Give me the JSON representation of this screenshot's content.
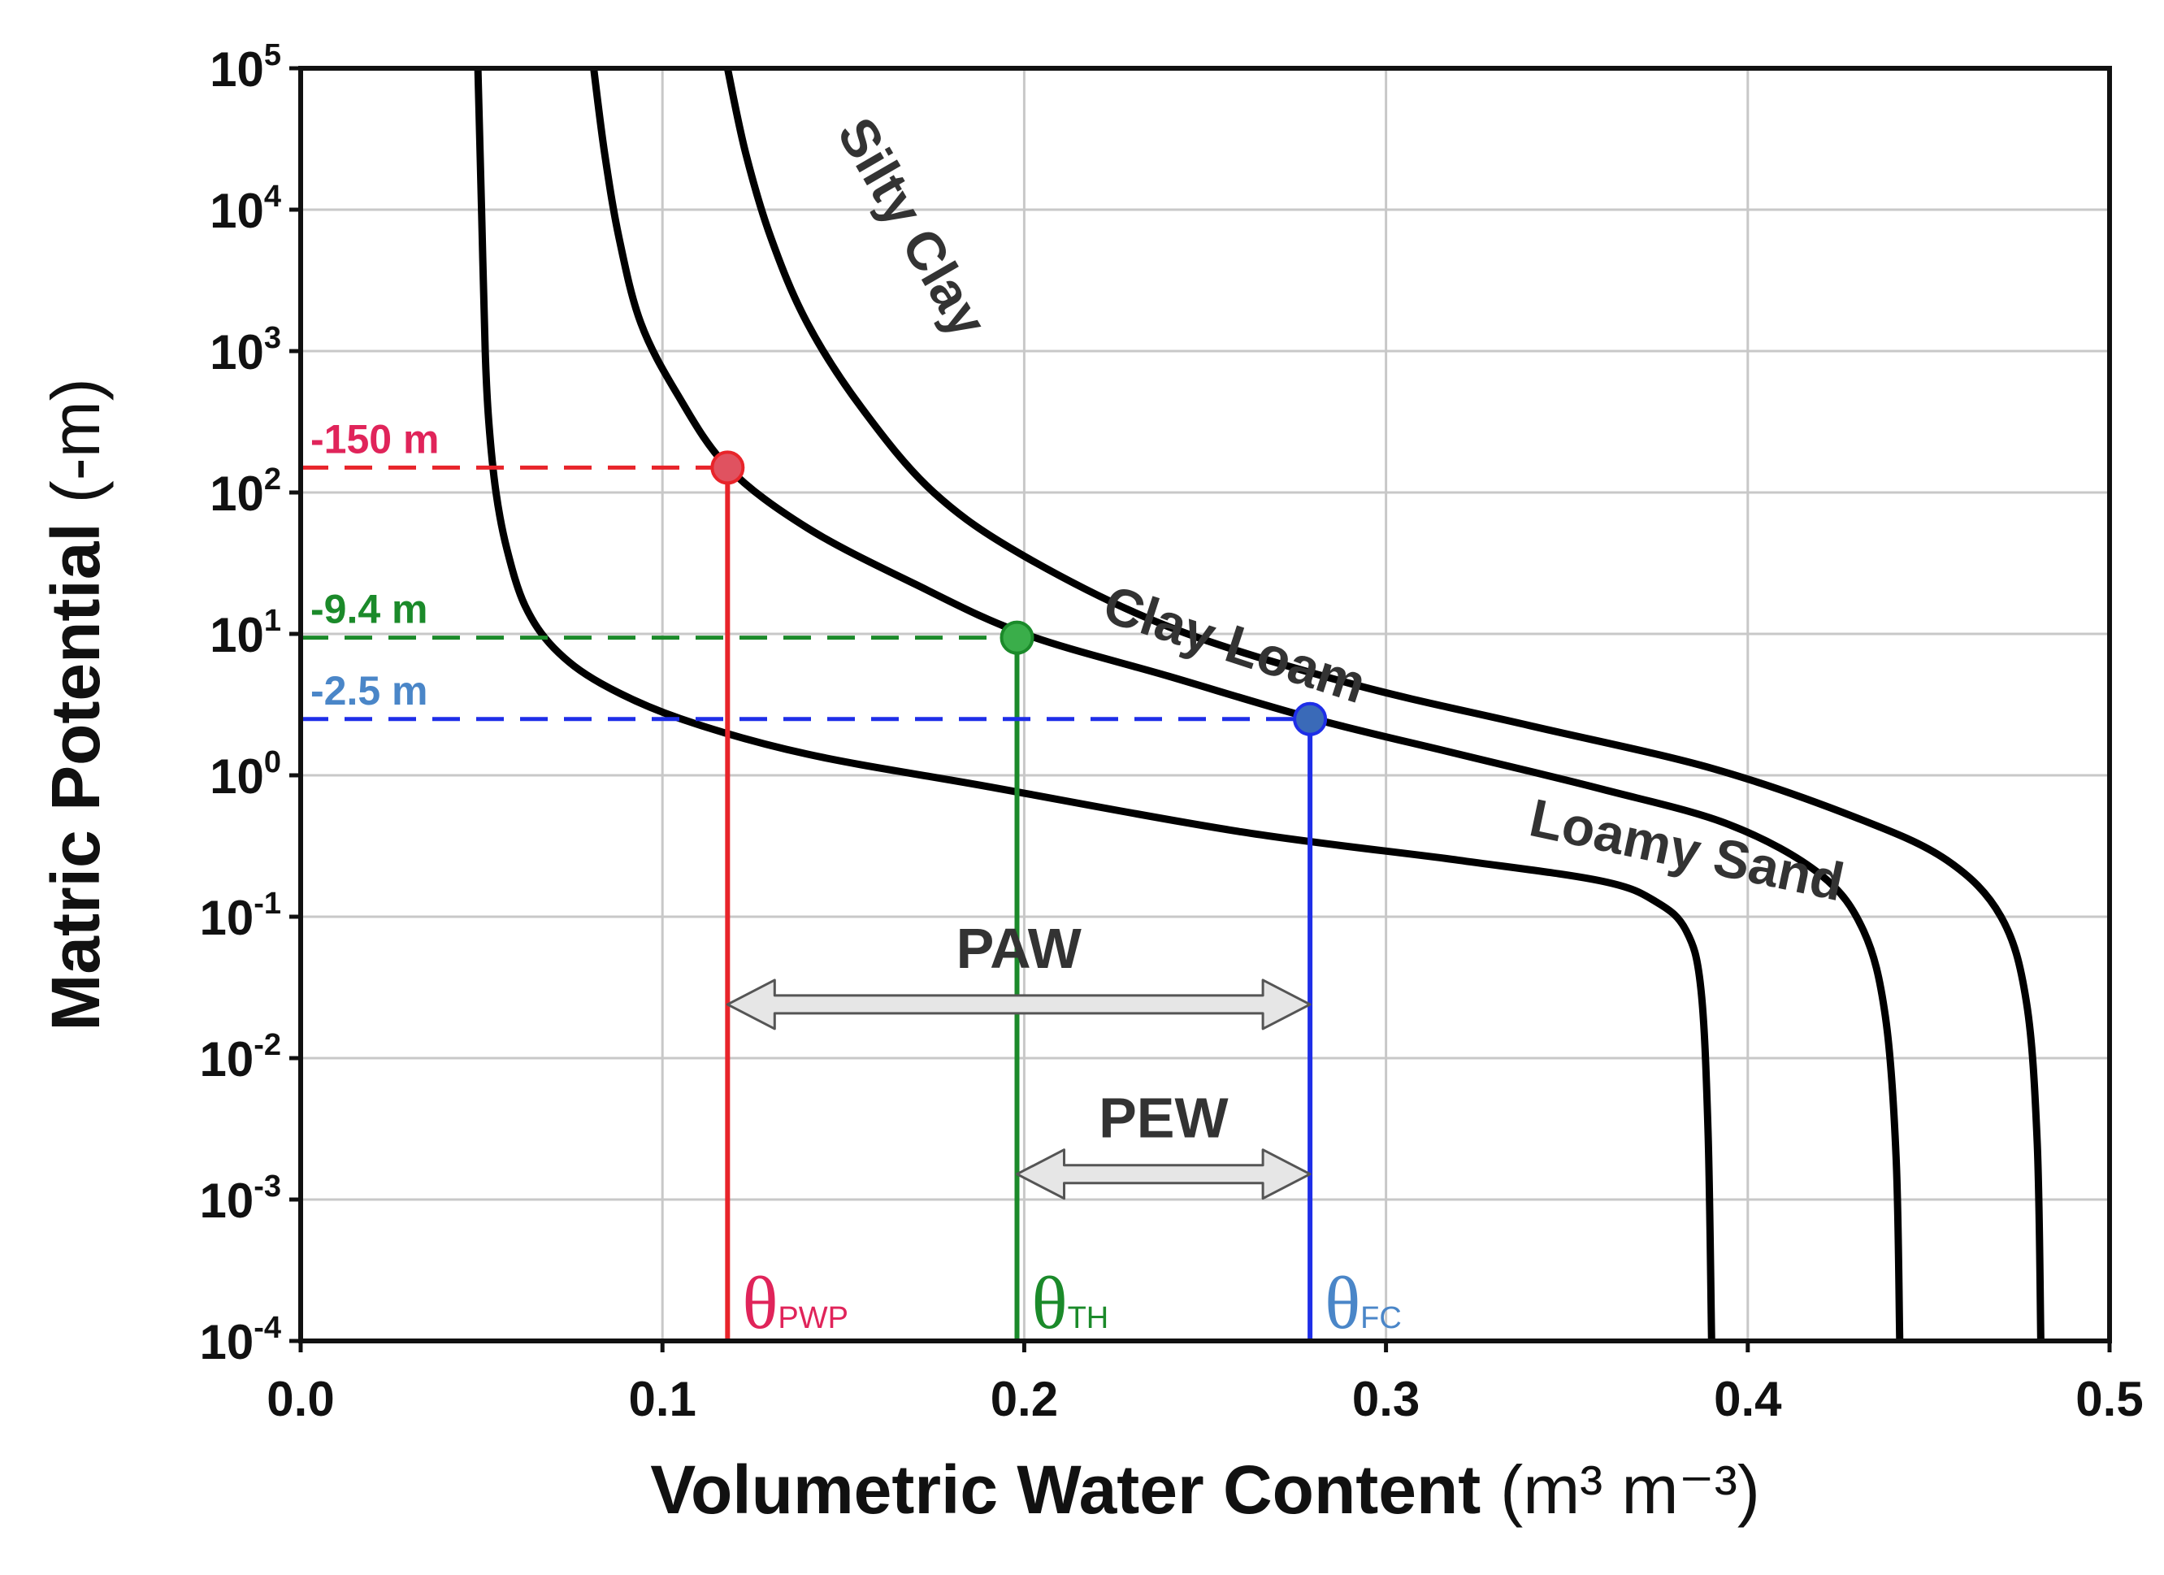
{
  "chart_data": {
    "type": "line",
    "xlabel": "Volumetric Water Content",
    "xlabel_unit": "(m³ m⁻³)",
    "ylabel": "Matric Potential",
    "ylabel_unit": "(-m)",
    "xlim": [
      0.0,
      0.5
    ],
    "ylim_log10": [
      -4,
      5
    ],
    "grid": true,
    "x_ticks": [
      "0.0",
      "0.1",
      "0.2",
      "0.3",
      "0.4",
      "0.5"
    ],
    "y_ticks": [
      {
        "base": "10",
        "exp": "5"
      },
      {
        "base": "10",
        "exp": "4"
      },
      {
        "base": "10",
        "exp": "3"
      },
      {
        "base": "10",
        "exp": "2"
      },
      {
        "base": "10",
        "exp": "1"
      },
      {
        "base": "10",
        "exp": "0"
      },
      {
        "base": "10",
        "exp": "-1"
      },
      {
        "base": "10",
        "exp": "-2"
      },
      {
        "base": "10",
        "exp": "-3"
      },
      {
        "base": "10",
        "exp": "-4"
      }
    ],
    "series": [
      {
        "name": "Loamy Sand",
        "x": [
          0.049,
          0.05,
          0.051,
          0.052,
          0.054,
          0.057,
          0.062,
          0.07,
          0.083,
          0.105,
          0.14,
          0.19,
          0.26,
          0.32,
          0.36,
          0.375,
          0.383,
          0.387,
          0.389,
          0.39
        ],
        "log10_y": [
          5,
          4,
          3,
          2.5,
          2,
          1.6,
          1.2,
          0.9,
          0.65,
          0.4,
          0.15,
          -0.08,
          -0.4,
          -0.6,
          -0.75,
          -0.9,
          -1.1,
          -1.5,
          -2.5,
          -4
        ]
      },
      {
        "name": "Clay Loam",
        "x": [
          0.081,
          0.084,
          0.088,
          0.094,
          0.104,
          0.118,
          0.14,
          0.17,
          0.2,
          0.24,
          0.28,
          0.32,
          0.36,
          0.395,
          0.42,
          0.432,
          0.438,
          0.441,
          0.442
        ],
        "log10_y": [
          5,
          4.4,
          3.8,
          3.2,
          2.7,
          2.18,
          1.75,
          1.35,
          1.0,
          0.7,
          0.4,
          0.15,
          -0.1,
          -0.35,
          -0.7,
          -1.1,
          -1.7,
          -2.7,
          -4
        ]
      },
      {
        "name": "Silty Clay",
        "x": [
          0.118,
          0.123,
          0.13,
          0.14,
          0.155,
          0.175,
          0.2,
          0.24,
          0.29,
          0.34,
          0.39,
          0.43,
          0.455,
          0.47,
          0.477,
          0.48,
          0.481
        ],
        "log10_y": [
          5,
          4.4,
          3.8,
          3.2,
          2.6,
          2.0,
          1.55,
          1.05,
          0.65,
          0.35,
          0.05,
          -0.3,
          -0.6,
          -1.0,
          -1.6,
          -2.6,
          -4
        ]
      }
    ],
    "markers": [
      {
        "name": "PWP",
        "label": "-150 m",
        "theta": 0.118,
        "psi": 150,
        "color": "#e8242a",
        "label_color": "#e0245a",
        "point_fill": "#e05260",
        "theta_text": "θ",
        "theta_sub": "PWP"
      },
      {
        "name": "TH",
        "label": "-9.4 m",
        "theta": 0.198,
        "psi": 9.4,
        "color": "#1b8a2a",
        "label_color": "#1b8a2a",
        "point_fill": "#3aae4a",
        "theta_text": "θ",
        "theta_sub": "TH"
      },
      {
        "name": "FC",
        "label": "-2.5 m",
        "theta": 0.279,
        "psi": 2.5,
        "color": "#1e2ee8",
        "label_color": "#4a86c8",
        "point_fill": "#3a6ab8",
        "theta_text": "θ",
        "theta_sub": "FC"
      }
    ],
    "ranges": [
      {
        "label": "PAW",
        "from": 0.118,
        "to": 0.279,
        "at_log10_y": -1.62
      },
      {
        "label": "PEW",
        "from": 0.198,
        "to": 0.279,
        "at_log10_y": -2.82
      }
    ],
    "curve_labels": [
      {
        "text": "Silty Clay",
        "x": 0.148,
        "log10_y": 4.55,
        "angle": 60
      },
      {
        "text": "Clay Loam",
        "x": 0.221,
        "log10_y": 1.1,
        "angle": 18
      },
      {
        "text": "Loamy Sand",
        "x": 0.339,
        "log10_y": -0.42,
        "angle": 12
      }
    ]
  }
}
